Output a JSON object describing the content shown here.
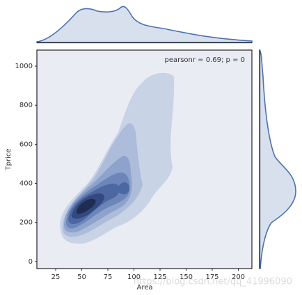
{
  "chart_data": {
    "type": "kde-joint",
    "annotation": "pearsonr = 0.69; p = 0",
    "x_label": "Area",
    "y_label": "Tprice",
    "xlim": [
      7,
      213
    ],
    "xticks": [
      25,
      50,
      75,
      100,
      125,
      150,
      175,
      200
    ],
    "ylim": [
      -36,
      1082
    ],
    "yticks": [
      0,
      200,
      400,
      600,
      800,
      1000
    ],
    "color": "#4c72b0",
    "watermark": "https://blog.csdn.net/qq_41996090"
  }
}
